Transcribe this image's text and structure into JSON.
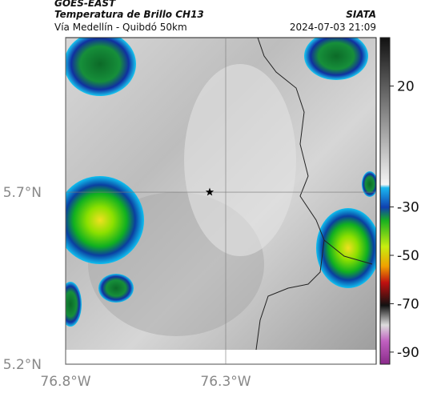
{
  "header": {
    "title": "GOES-EAST",
    "subtitle": "Temperatura de Brillo CH13",
    "route": "Vía Medellín - Quibdó 50km",
    "source": "SIATA",
    "timestamp": "2024-07-03 21:09"
  },
  "map": {
    "lonlim": [
      -76.8,
      -75.83
    ],
    "latlim": [
      5.2,
      6.149
    ],
    "lat_ticks": [
      {
        "value": 5.7,
        "label": "5.7°N"
      },
      {
        "value": 5.2,
        "label": "5.2°N"
      }
    ],
    "lon_ticks": [
      {
        "value": -76.8,
        "label": "76.8°W"
      },
      {
        "value": -76.3,
        "label": "76.3°W"
      }
    ],
    "marker": {
      "lon": -76.35,
      "lat": 5.7
    }
  },
  "colorbar": {
    "range": [
      40,
      -95
    ],
    "ticks": [
      20,
      -30,
      -50,
      -70,
      -90
    ]
  }
}
